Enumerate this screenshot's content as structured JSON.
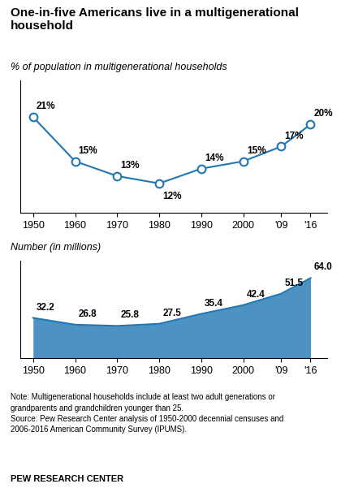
{
  "chart_data": [
    {
      "type": "line",
      "title": "One-in-five Americans live in a multigenerational\nhousehold",
      "subtitle": "% of population in multigenerational households",
      "x": [
        1950,
        1960,
        1970,
        1980,
        1990,
        2000,
        2009,
        2016
      ],
      "values": [
        21,
        15,
        13,
        12,
        14,
        15,
        17,
        20
      ],
      "value_labels": [
        "21%",
        "15%",
        "13%",
        "12%",
        "14%",
        "15%",
        "17%",
        "20%"
      ],
      "data_labels": true,
      "marker": "o",
      "xlim": [
        1947,
        2020
      ],
      "xticks": [
        1950,
        1960,
        1970,
        1980,
        1990,
        2000,
        {
          "value": 2009,
          "label": "'09"
        },
        {
          "value": 2016,
          "label": "'16"
        }
      ],
      "ylim": [
        8,
        26
      ],
      "tick_labels": "x"
    },
    {
      "type": "area",
      "subtitle": "Number (in millions)",
      "x": [
        1950,
        1960,
        1970,
        1980,
        1990,
        2000,
        2009,
        2016
      ],
      "values": [
        32.2,
        26.8,
        25.8,
        27.5,
        35.4,
        42.4,
        51.5,
        64.0
      ],
      "value_labels": [
        "32.2",
        "26.8",
        "25.8",
        "27.5",
        "35.4",
        "42.4",
        "51.5",
        "64.0"
      ],
      "data_labels": true,
      "xlim": [
        1947,
        2020
      ],
      "xticks": [
        1950,
        1960,
        1970,
        1980,
        1990,
        2000,
        {
          "value": 2009,
          "label": "'09"
        },
        {
          "value": 2016,
          "label": "'16"
        }
      ],
      "ylim": [
        0,
        78
      ],
      "tick_labels": "x",
      "annotations": [
        "Note: Multigenerational households include at least two adult generations or\ngrandparents and grandchildren younger than 25.\nSource: Pew Research Center analysis of 1950-2000 decennial censuses and\n2006-2016 American Community Survey (IPUMS).",
        "PEW RESEARCH CENTER"
      ]
    }
  ]
}
